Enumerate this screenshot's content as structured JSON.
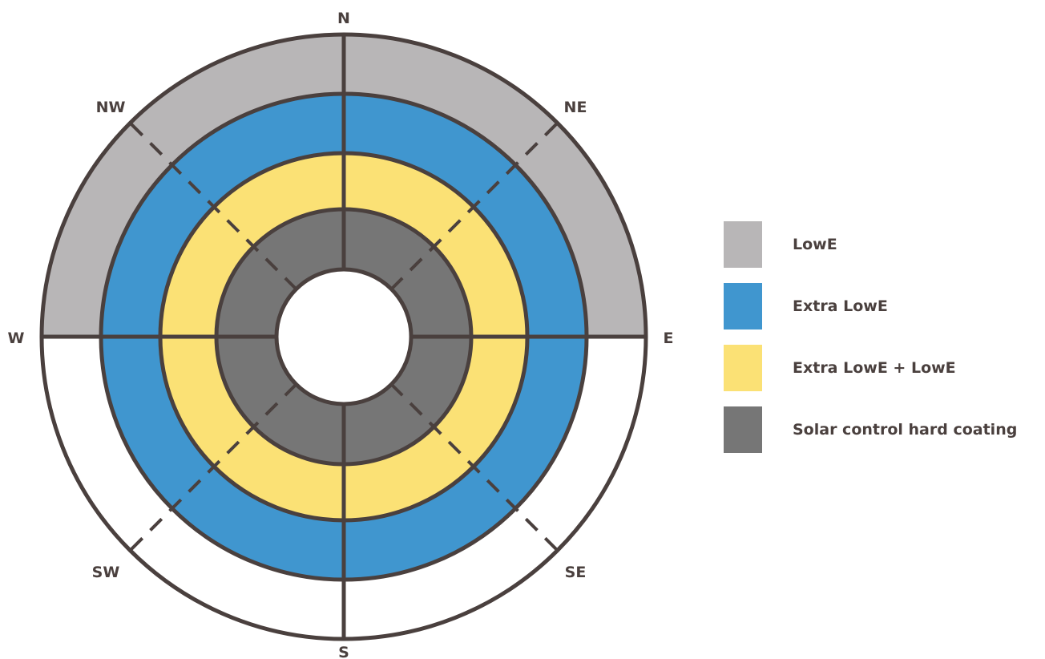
{
  "directions": {
    "n": "N",
    "ne": "NE",
    "e": "E",
    "se": "SE",
    "s": "S",
    "sw": "SW",
    "w": "W",
    "nw": "NW"
  },
  "colors": {
    "lowe": "#b8b6b7",
    "extra_lowe": "#4096cf",
    "extra_lowe_plus_lowe": "#fbe175",
    "solar_control": "#767676",
    "stroke": "#4a403e",
    "empty": "#ffffff"
  },
  "legend": [
    {
      "label": "LowE",
      "color": "#b8b6b7"
    },
    {
      "label": "Extra LowE",
      "color": "#4096cf"
    },
    {
      "label": "Extra LowE + LowE",
      "color": "#fbe175"
    },
    {
      "label": "Solar control hard coating",
      "color": "#767676"
    }
  ],
  "rings": [
    {
      "name": "solar-control-ring",
      "coverage": "all directions",
      "color": "#767676"
    },
    {
      "name": "extra-lowe-plus-lowe-ring",
      "coverage": "all directions",
      "color": "#fbe175"
    },
    {
      "name": "extra-lowe-ring",
      "coverage": "all directions",
      "color": "#4096cf"
    },
    {
      "name": "lowe-ring",
      "coverage": "north half (W through N to E)",
      "color": "#b8b6b7"
    }
  ]
}
